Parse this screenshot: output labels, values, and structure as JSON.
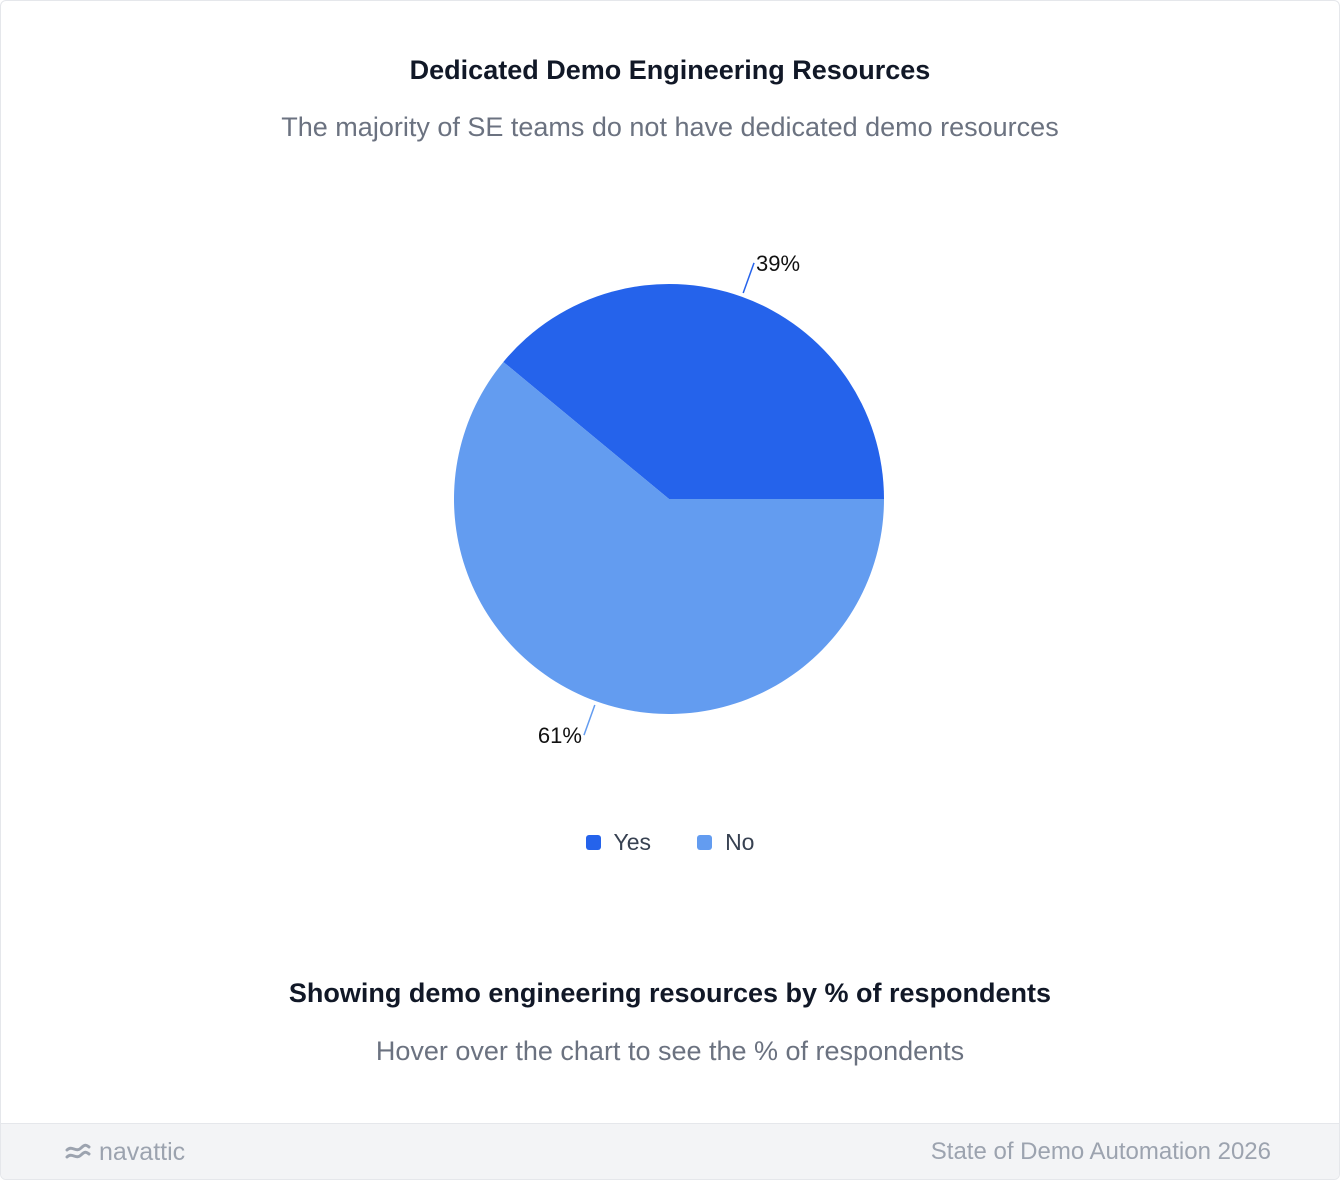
{
  "header": {
    "title": "Dedicated Demo Engineering Resources",
    "subtitle": "The majority of SE teams do not have dedicated demo resources"
  },
  "chart_data": {
    "type": "pie",
    "categories": [
      "Yes",
      "No"
    ],
    "values": [
      39,
      61
    ],
    "labels": [
      "39%",
      "61%"
    ],
    "colors": [
      "#2563eb",
      "#639cf0"
    ],
    "legend_position": "bottom"
  },
  "footnote": {
    "title": "Showing demo engineering resources by % of respondents",
    "hint": "Hover over the chart to see the % of respondents"
  },
  "footer": {
    "brand": "navattic",
    "brand_icon": "navattic-logo-icon",
    "report": "State of Demo Automation 2026"
  }
}
